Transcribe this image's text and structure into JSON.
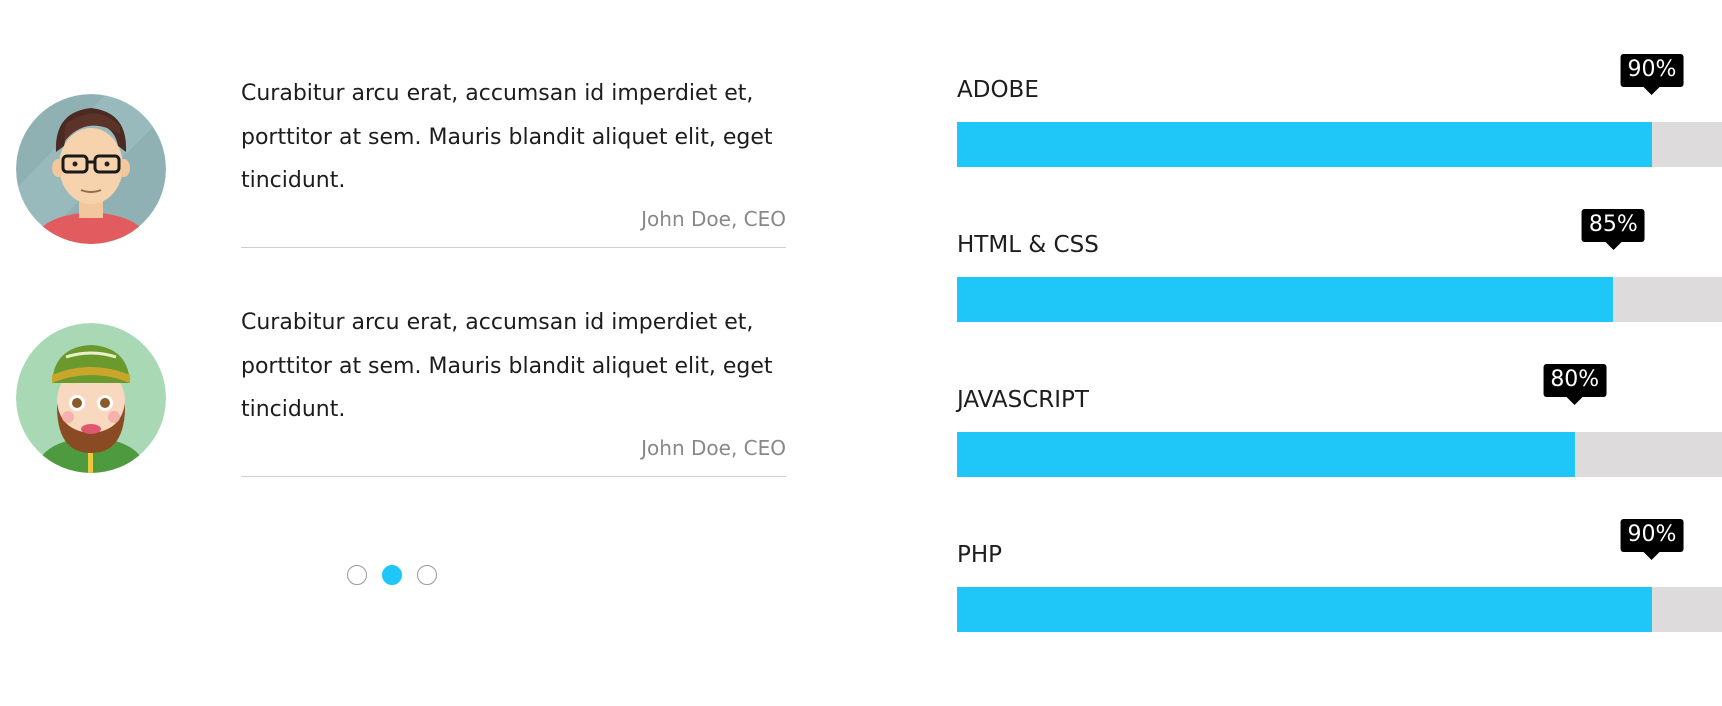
{
  "testimonials": [
    {
      "text": "Curabitur arcu erat, accumsan id imperdiet et, porttitor at sem. Mauris blandit aliquet elit, eget tincidunt.",
      "author": "John Doe, CEO",
      "avatar_icon": "man-with-glasses-avatar"
    },
    {
      "text": "Curabitur arcu erat, accumsan id imperdiet et, porttitor at sem. Mauris blandit aliquet elit, eget tincidunt.",
      "author": "John Doe, CEO",
      "avatar_icon": "bearded-man-with-hat-avatar"
    }
  ],
  "carousel": {
    "dot_count": 3,
    "active_index": 1
  },
  "skills": [
    {
      "label": "ADOBE",
      "percent": 90,
      "percent_label": "90%"
    },
    {
      "label": "HTML & CSS",
      "percent": 85,
      "percent_label": "85%"
    },
    {
      "label": "JAVASCRIPT",
      "percent": 80,
      "percent_label": "80%"
    },
    {
      "label": "PHP",
      "percent": 90,
      "percent_label": "90%"
    }
  ],
  "colors": {
    "accent": "#1ec7f7",
    "track": "#dddbdb",
    "tooltip": "#000000"
  }
}
